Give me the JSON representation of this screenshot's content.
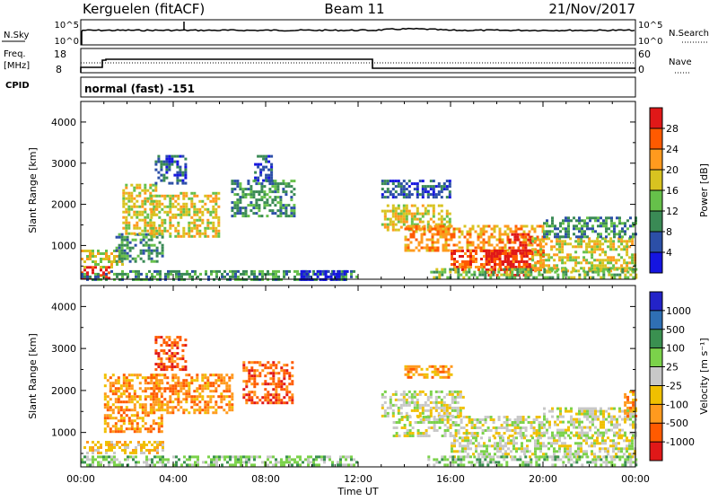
{
  "header": {
    "station": "Kerguelen (fitACF)",
    "beam": "Beam 11",
    "date": "21/Nov/2017"
  },
  "status_panel": {
    "left_label_top": "N.Sky",
    "left_label_freq": "Freq.",
    "left_label_freq_unit": "[MHz]",
    "left_label_cpid": "CPID",
    "right_label_top": "N.Search",
    "right_label_nave": "Nave",
    "nsky_ticks": [
      "10^5",
      "10^0"
    ],
    "freq_ticks": [
      "18",
      "8"
    ],
    "nave_ticks": [
      "60",
      "0"
    ],
    "cpid_text": "normal (fast) -151"
  },
  "colors": {
    "power_scale": [
      "#1515e0",
      "#2c4fa7",
      "#3a8a55",
      "#66c04a",
      "#d8c320",
      "#ff9a1e",
      "#ff5a00",
      "#e01818"
    ],
    "velocity_scale": [
      "#2323c8",
      "#2f6fb4",
      "#3a9050",
      "#7bd24a",
      "#c8c8c8",
      "#f0c000",
      "#ff9a1e",
      "#ff5a00",
      "#e01818"
    ]
  },
  "chart_data": [
    {
      "type": "heatmap",
      "quantity": "Power",
      "ylabel": "Slant Range [km]",
      "xlabel": "Time UT",
      "x_ticks": [
        "00:00",
        "04:00",
        "08:00",
        "12:00",
        "16:00",
        "20:00",
        "00:00"
      ],
      "xlim_hours": [
        0,
        24
      ],
      "ylim_km": [
        180,
        4500
      ],
      "y_ticks": [
        1000,
        2000,
        3000,
        4000
      ],
      "colorbar": {
        "label": "Power [dB]",
        "ticks": [
          "4",
          "8",
          "12",
          "16",
          "20",
          "24",
          "28"
        ]
      },
      "regions": [
        {
          "t0": 0.0,
          "t1": 1.2,
          "r0": 200,
          "r1": 500,
          "level": 7
        },
        {
          "t0": 0.0,
          "t1": 1.8,
          "r0": 500,
          "r1": 900,
          "level": 4
        },
        {
          "t0": 1.5,
          "t1": 3.5,
          "r0": 600,
          "r1": 1300,
          "level": 2
        },
        {
          "t0": 1.8,
          "t1": 3.2,
          "r0": 1300,
          "r1": 2500,
          "level": 4
        },
        {
          "t0": 3.0,
          "t1": 6.0,
          "r0": 1200,
          "r1": 2300,
          "level": 4
        },
        {
          "t0": 3.2,
          "t1": 4.5,
          "r0": 2500,
          "r1": 3200,
          "level": 1
        },
        {
          "t0": 6.5,
          "t1": 9.2,
          "r0": 1700,
          "r1": 2600,
          "level": 2
        },
        {
          "t0": 7.5,
          "t1": 8.3,
          "r0": 2600,
          "r1": 3200,
          "level": 1
        },
        {
          "t0": 0.0,
          "t1": 12.0,
          "r0": 200,
          "r1": 400,
          "level": 2
        },
        {
          "t0": 9.5,
          "t1": 11.5,
          "r0": 200,
          "r1": 400,
          "level": 0
        },
        {
          "t0": 13.0,
          "t1": 16.0,
          "r0": 1400,
          "r1": 2000,
          "level": 4
        },
        {
          "t0": 14.0,
          "t1": 20.0,
          "r0": 900,
          "r1": 1500,
          "level": 5
        },
        {
          "t0": 16.0,
          "t1": 20.0,
          "r0": 400,
          "r1": 900,
          "level": 6
        },
        {
          "t0": 17.5,
          "t1": 19.5,
          "r0": 300,
          "r1": 900,
          "level": 7
        },
        {
          "t0": 18.5,
          "t1": 19.5,
          "r0": 800,
          "r1": 1300,
          "level": 7
        },
        {
          "t0": 19.5,
          "t1": 24.0,
          "r0": 400,
          "r1": 1200,
          "level": 4
        },
        {
          "t0": 20.0,
          "t1": 24.0,
          "r0": 1200,
          "r1": 1700,
          "level": 2
        },
        {
          "t0": 13.0,
          "t1": 16.0,
          "r0": 2200,
          "r1": 2600,
          "level": 1
        },
        {
          "t0": 15.0,
          "t1": 24.0,
          "r0": 200,
          "r1": 450,
          "level": 3
        }
      ]
    },
    {
      "type": "heatmap",
      "quantity": "Velocity",
      "ylabel": "Slant Range [km]",
      "xlabel": "Time UT",
      "x_ticks": [
        "00:00",
        "04:00",
        "08:00",
        "12:00",
        "16:00",
        "20:00",
        "00:00"
      ],
      "xlim_hours": [
        0,
        24
      ],
      "ylim_km": [
        180,
        4500
      ],
      "y_ticks": [
        1000,
        2000,
        3000,
        4000
      ],
      "colorbar": {
        "label": "Velocity [m s⁻¹]",
        "ticks": [
          "1000",
          "500",
          "100",
          "25",
          "-25",
          "-100",
          "-500",
          "-1000"
        ]
      },
      "regions": [
        {
          "t0": 0.0,
          "t1": 3.5,
          "r0": 500,
          "r1": 800,
          "level": 5
        },
        {
          "t0": 1.0,
          "t1": 3.5,
          "r0": 1000,
          "r1": 2400,
          "level": 6
        },
        {
          "t0": 3.0,
          "t1": 6.5,
          "r0": 1500,
          "r1": 2400,
          "level": 6
        },
        {
          "t0": 3.2,
          "t1": 4.5,
          "r0": 2500,
          "r1": 3300,
          "level": 7
        },
        {
          "t0": 7.0,
          "t1": 9.2,
          "r0": 1700,
          "r1": 2700,
          "level": 7
        },
        {
          "t0": 0.0,
          "t1": 12.0,
          "r0": 200,
          "r1": 450,
          "level": 3
        },
        {
          "t0": 13.0,
          "t1": 16.5,
          "r0": 1400,
          "r1": 2000,
          "level": 4
        },
        {
          "t0": 13.5,
          "t1": 20.0,
          "r0": 900,
          "r1": 1400,
          "level": 4
        },
        {
          "t0": 16.0,
          "t1": 24.0,
          "r0": 400,
          "r1": 900,
          "level": 4
        },
        {
          "t0": 20.0,
          "t1": 24.0,
          "r0": 900,
          "r1": 1600,
          "level": 4
        },
        {
          "t0": 15.0,
          "t1": 24.0,
          "r0": 200,
          "r1": 450,
          "level": 3
        },
        {
          "t0": 14.0,
          "t1": 16.0,
          "r0": 2300,
          "r1": 2600,
          "level": 6
        },
        {
          "t0": 23.5,
          "t1": 24.0,
          "r0": 1400,
          "r1": 2000,
          "level": 6
        }
      ]
    }
  ]
}
